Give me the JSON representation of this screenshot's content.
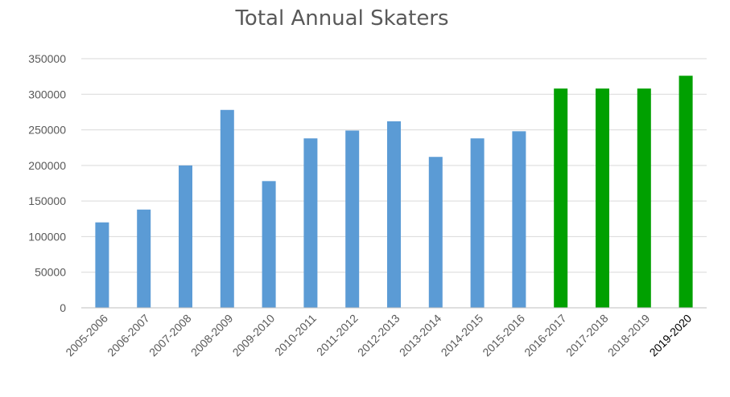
{
  "chart_data": {
    "type": "bar",
    "title": "Total Annual Skaters",
    "xlabel": "",
    "ylabel": "",
    "ylim": [
      0,
      350000
    ],
    "yticks": [
      "0",
      "50000",
      "100000",
      "150000",
      "200000",
      "250000",
      "300000",
      "350000"
    ],
    "grid": "horizontal",
    "legend": "none",
    "categories": [
      "2005-2006",
      "2006-2007",
      "2007-2008",
      "2008-2009",
      "2009-2010",
      "2010-2011",
      "2011-2012",
      "2012-2013",
      "2013-2014",
      "2014-2015",
      "2015-2016",
      "2016-2017",
      "2017-2018",
      "2018-2019",
      "2019-2020"
    ],
    "values": [
      120000,
      138000,
      200000,
      278000,
      178000,
      238000,
      249000,
      262000,
      212000,
      238000,
      248000,
      308000,
      308000,
      308000,
      326000
    ],
    "bar_colors": [
      "#5b9bd5",
      "#5b9bd5",
      "#5b9bd5",
      "#5b9bd5",
      "#5b9bd5",
      "#5b9bd5",
      "#5b9bd5",
      "#5b9bd5",
      "#5b9bd5",
      "#5b9bd5",
      "#5b9bd5",
      "#00a000",
      "#00a000",
      "#00a000",
      "#00a000"
    ],
    "colors": {
      "text": "#595959",
      "grid": "#d9d9d9",
      "axis": "#bfbfbf"
    }
  }
}
